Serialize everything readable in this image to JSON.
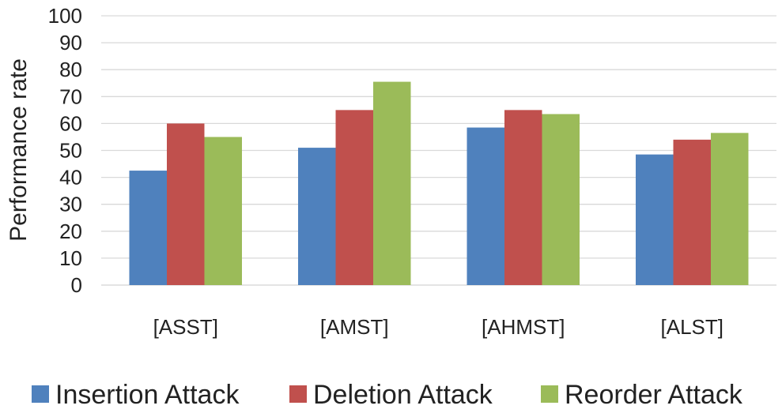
{
  "chart_data": {
    "type": "bar",
    "title": "",
    "xlabel": "",
    "ylabel": "Performance rate",
    "ylim": [
      0,
      100
    ],
    "yticks": [
      0,
      10,
      20,
      30,
      40,
      50,
      60,
      70,
      80,
      90,
      100
    ],
    "grid": "horizontal",
    "legend_position": "bottom",
    "categories": [
      "[ASST]",
      "[AMST]",
      "[AHMST]",
      "[ALST]"
    ],
    "series": [
      {
        "name": "Insertion Attack",
        "color": "#4f81bd",
        "values": [
          42.5,
          51,
          58.5,
          48.5
        ]
      },
      {
        "name": "Deletion Attack",
        "color": "#c0504d",
        "values": [
          60,
          65,
          65,
          54
        ]
      },
      {
        "name": "Reorder Attack",
        "color": "#9bbb59",
        "values": [
          55,
          75.5,
          63.5,
          56.5
        ]
      }
    ]
  }
}
